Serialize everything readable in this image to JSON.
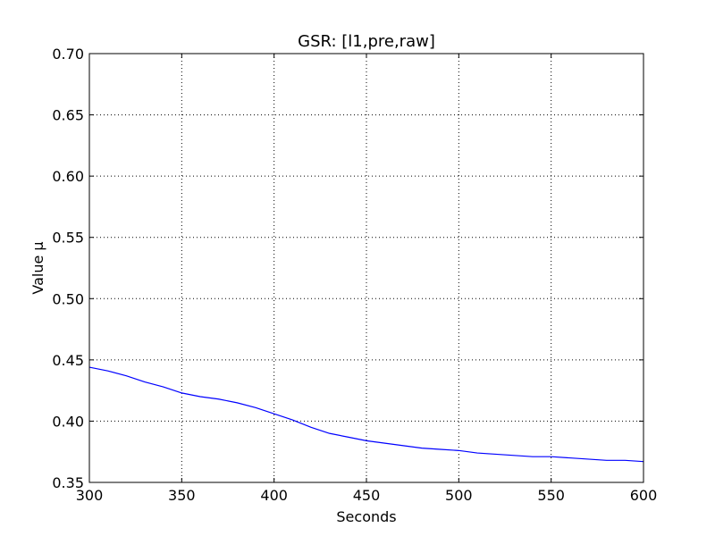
{
  "chart_data": {
    "type": "line",
    "title": "GSR: [l1,pre,raw]",
    "xlabel": "Seconds",
    "ylabel": "Value μ",
    "xlim": [
      300,
      600
    ],
    "ylim": [
      0.35,
      0.7
    ],
    "grid": true,
    "x_ticks": [
      "300",
      "350",
      "400",
      "450",
      "500",
      "550",
      "600"
    ],
    "y_ticks": [
      "0.35",
      "0.40",
      "0.45",
      "0.50",
      "0.55",
      "0.60",
      "0.65",
      "0.70"
    ],
    "series": [
      {
        "color": "#0000ff",
        "x": [
          300,
          310,
          320,
          330,
          340,
          350,
          360,
          370,
          380,
          390,
          400,
          410,
          420,
          430,
          440,
          450,
          460,
          470,
          480,
          490,
          500,
          510,
          520,
          530,
          540,
          550,
          560,
          570,
          580,
          590,
          600
        ],
        "y": [
          0.444,
          0.441,
          0.437,
          0.432,
          0.428,
          0.423,
          0.42,
          0.418,
          0.415,
          0.411,
          0.406,
          0.401,
          0.395,
          0.39,
          0.387,
          0.384,
          0.382,
          0.38,
          0.378,
          0.377,
          0.376,
          0.374,
          0.373,
          0.372,
          0.371,
          0.371,
          0.37,
          0.369,
          0.368,
          0.368,
          0.367
        ]
      }
    ]
  }
}
